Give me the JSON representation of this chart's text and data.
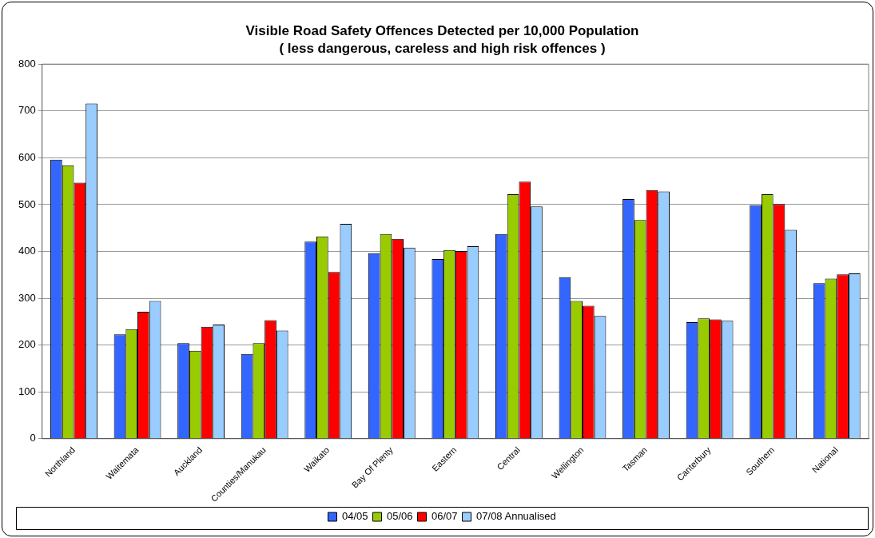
{
  "chart_data": {
    "type": "bar",
    "title": "Visible Road Safety Offences Detected per 10,000 Population",
    "subtitle": "( less dangerous, careless and high risk offences )",
    "categories": [
      "Northland",
      "Waitemata",
      "Auckland",
      "Counties/Manukau",
      "Waikato",
      "Bay Of Plenty",
      "Eastern",
      "Central",
      "Wellington",
      "Tasman",
      "Canterbury",
      "Southern",
      "National"
    ],
    "series": [
      {
        "name": "04/05",
        "color": "#3366ff",
        "values": [
          596,
          223,
          204,
          181,
          421,
          396,
          384,
          437,
          345,
          512,
          249,
          499,
          332
        ]
      },
      {
        "name": "05/06",
        "color": "#99cc00",
        "values": [
          584,
          234,
          188,
          204,
          432,
          437,
          403,
          522,
          294,
          467,
          257,
          522,
          342
        ]
      },
      {
        "name": "06/07",
        "color": "#ff0000",
        "values": [
          547,
          271,
          239,
          253,
          356,
          427,
          401,
          549,
          284,
          531,
          255,
          501,
          351
        ]
      },
      {
        "name": "07/08 Annualised",
        "color": "#99ccff",
        "values": [
          716,
          294,
          244,
          231,
          459,
          408,
          411,
          496,
          262,
          528,
          252,
          446,
          353
        ]
      }
    ],
    "ylim": [
      0,
      800
    ],
    "yticks": [
      0,
      100,
      200,
      300,
      400,
      500,
      600,
      700,
      800
    ],
    "grid": "y",
    "legend": "bottom"
  }
}
